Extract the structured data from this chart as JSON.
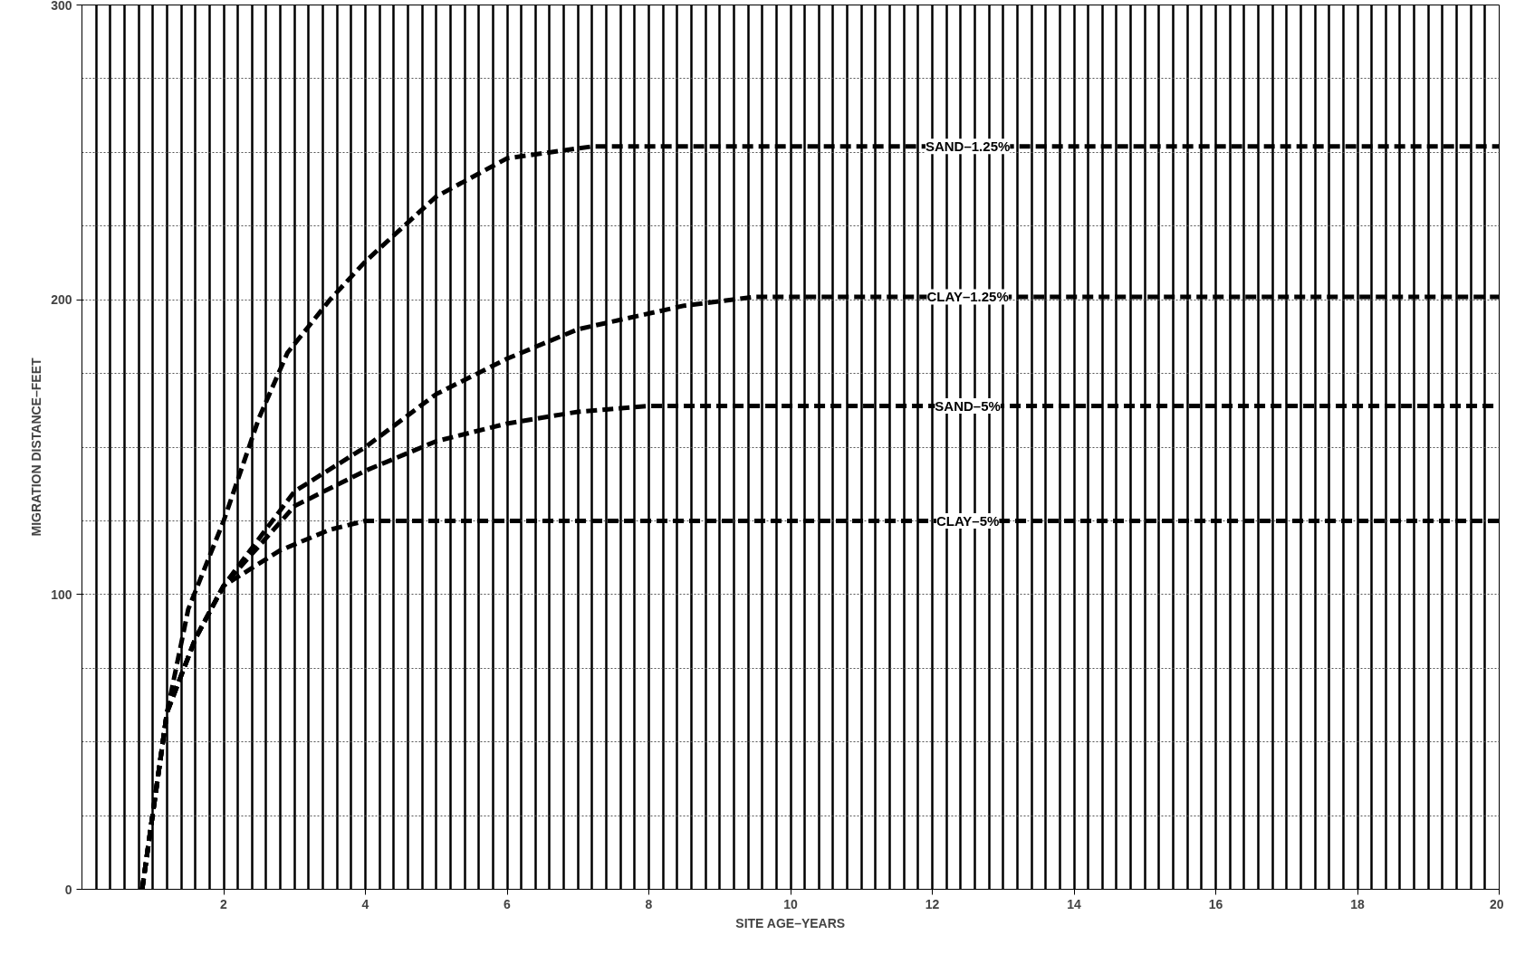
{
  "chart_data": {
    "type": "line",
    "xlabel": "SITE AGE–YEARS",
    "ylabel": "MIGRATION DISTANCE–FEET",
    "xlim": [
      0,
      20
    ],
    "ylim": [
      0,
      300
    ],
    "xticks": [
      2,
      4,
      6,
      8,
      10,
      12,
      14,
      16,
      18,
      20
    ],
    "yticks": [
      0,
      100,
      200,
      300
    ],
    "grid": true,
    "line_style": "dashed",
    "series": [
      {
        "name": "SAND–1.25%",
        "color": "#000000",
        "x": [
          0.85,
          1.2,
          1.5,
          2.0,
          2.5,
          2.9,
          3.5,
          4.0,
          5.0,
          6.0,
          7.2,
          20
        ],
        "values": [
          0,
          60,
          95,
          125,
          160,
          182,
          200,
          213,
          235,
          248,
          252,
          252
        ]
      },
      {
        "name": "CLAY–1.25%",
        "color": "#000000",
        "x": [
          0.85,
          1.2,
          1.6,
          2.0,
          3.0,
          4.0,
          5.0,
          6.0,
          7.0,
          8.5,
          9.5,
          20
        ],
        "values": [
          0,
          60,
          85,
          103,
          135,
          150,
          168,
          180,
          190,
          198,
          201,
          201
        ]
      },
      {
        "name": "SAND–5%",
        "color": "#000000",
        "x": [
          0.85,
          1.2,
          1.6,
          2.0,
          3.0,
          4.0,
          5.0,
          6.0,
          7.0,
          8.0,
          20
        ],
        "values": [
          0,
          60,
          85,
          103,
          130,
          142,
          152,
          158,
          162,
          164,
          164
        ]
      },
      {
        "name": "CLAY–5%",
        "color": "#000000",
        "x": [
          0.85,
          1.2,
          1.6,
          2.0,
          2.8,
          3.5,
          4.0,
          20
        ],
        "values": [
          0,
          60,
          85,
          103,
          115,
          122,
          125,
          125
        ]
      }
    ]
  }
}
